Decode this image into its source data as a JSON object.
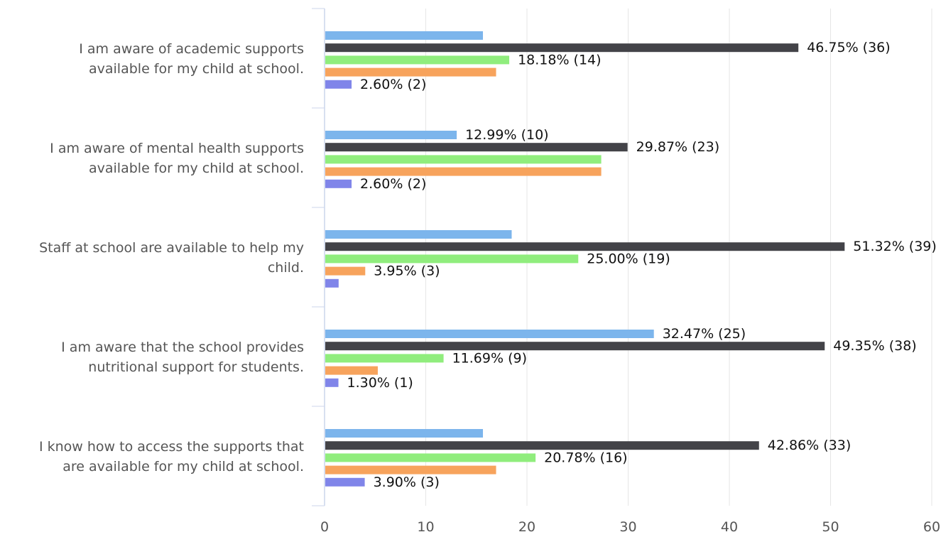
{
  "chart_data": {
    "type": "bar",
    "orientation": "horizontal",
    "categories": [
      [
        "I am aware of academic supports",
        "available for my child at school."
      ],
      [
        "I am aware of mental health supports",
        "available for my child at school."
      ],
      [
        "Staff at school are available to help my",
        "child."
      ],
      [
        "I am aware that the school provides",
        "nutritional support for students."
      ],
      [
        "I know how to access the supports that",
        "are available for my child at school."
      ]
    ],
    "series": [
      {
        "color": "#7cb5ec",
        "values": [
          15.58,
          12.99,
          18.42,
          32.47,
          15.58
        ],
        "labels": [
          "",
          "12.99% (10)",
          "",
          "32.47% (25)",
          ""
        ]
      },
      {
        "color": "#434348",
        "values": [
          46.75,
          29.87,
          51.32,
          49.35,
          42.86
        ],
        "labels": [
          "46.75% (36)",
          "29.87% (23)",
          "51.32% (39)",
          "49.35% (38)",
          "42.86% (33)"
        ]
      },
      {
        "color": "#90ed7d",
        "values": [
          18.18,
          27.27,
          25.0,
          11.69,
          20.78
        ],
        "labels": [
          "18.18% (14)",
          "",
          "25.00% (19)",
          "11.69% (9)",
          "20.78% (16)"
        ]
      },
      {
        "color": "#f7a35c",
        "values": [
          16.88,
          27.27,
          3.95,
          5.19,
          16.88
        ],
        "labels": [
          "",
          "",
          "3.95% (3)",
          "",
          ""
        ]
      },
      {
        "color": "#8085e9",
        "values": [
          2.6,
          2.6,
          1.32,
          1.3,
          3.9
        ],
        "labels": [
          "2.60% (2)",
          "2.60% (2)",
          "",
          "1.30% (1)",
          "3.90% (3)"
        ]
      }
    ],
    "xlim": [
      0,
      60
    ],
    "xticks": [
      "0",
      "10",
      "20",
      "30",
      "40",
      "50",
      "60"
    ],
    "grid": true,
    "legend": "none",
    "title": "",
    "xlabel": "",
    "ylabel": ""
  }
}
